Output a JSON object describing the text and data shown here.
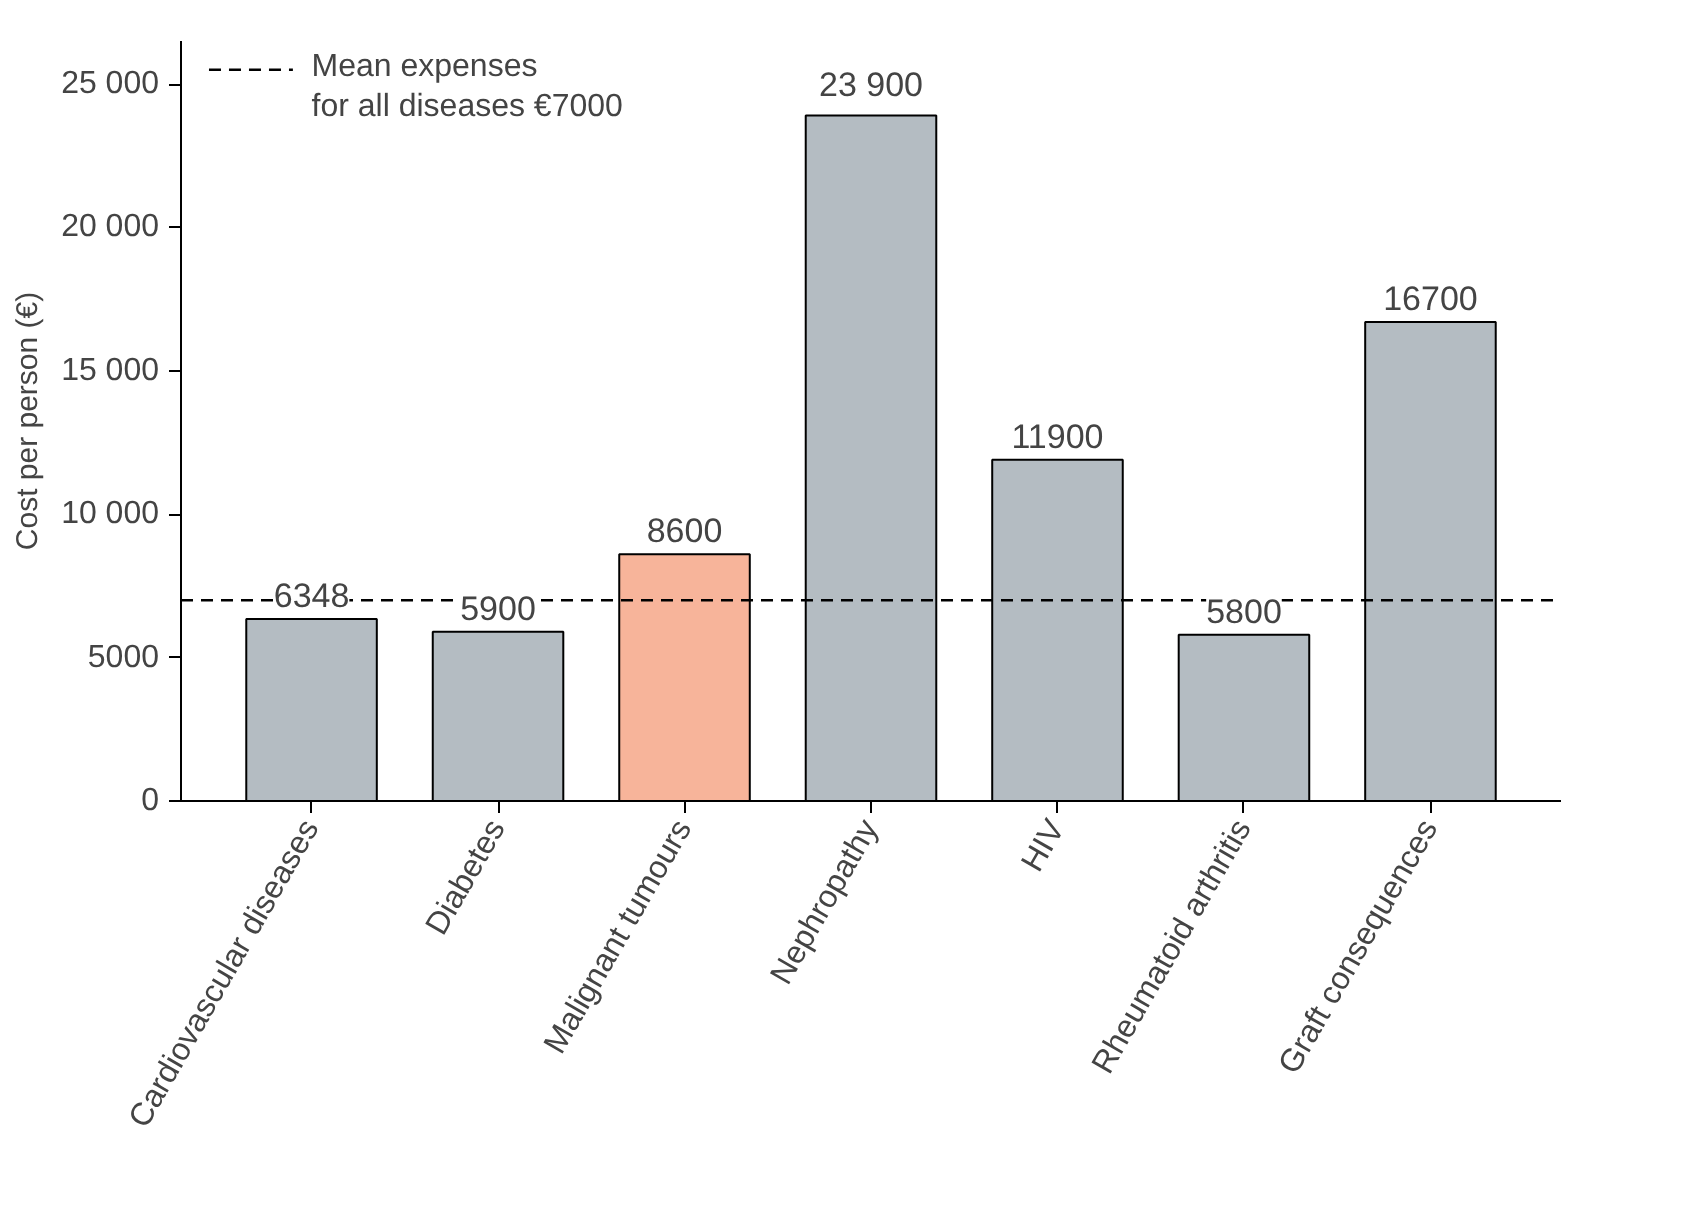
{
  "chart_data": {
    "type": "bar",
    "ylabel": "Cost per person (€)",
    "categories": [
      "Cardiovascular diseases",
      "Diabetes",
      "Malignant tumours",
      "Nephropathy",
      "HIV",
      "Rheumatoid arthritis",
      "Graft consequences"
    ],
    "values": [
      6348,
      5900,
      8600,
      23900,
      11900,
      5800,
      16700
    ],
    "colors": [
      "#b4bcc2",
      "#b4bcc2",
      "#f7b49a",
      "#b4bcc2",
      "#b4bcc2",
      "#b4bcc2",
      "#b4bcc2"
    ],
    "value_labels": [
      "6348",
      "5900",
      "8600",
      "23 900",
      "11900",
      "5800",
      "16700"
    ],
    "ylim": [
      0,
      26500
    ],
    "yticks": [
      0,
      5000,
      {
        "value": 10000,
        "label": "10 000"
      },
      {
        "value": 15000,
        "label": "15 000"
      },
      {
        "value": 20000,
        "label": "20 000"
      },
      {
        "value": 25000,
        "label": "25 000"
      }
    ],
    "ref_lines": [
      {
        "axis": "y",
        "value": 7000,
        "label": "Mean expenses\nfor all diseases €7000",
        "line_style": "dashed",
        "color": "#000000"
      }
    ],
    "grid": false,
    "legend": "top left"
  }
}
